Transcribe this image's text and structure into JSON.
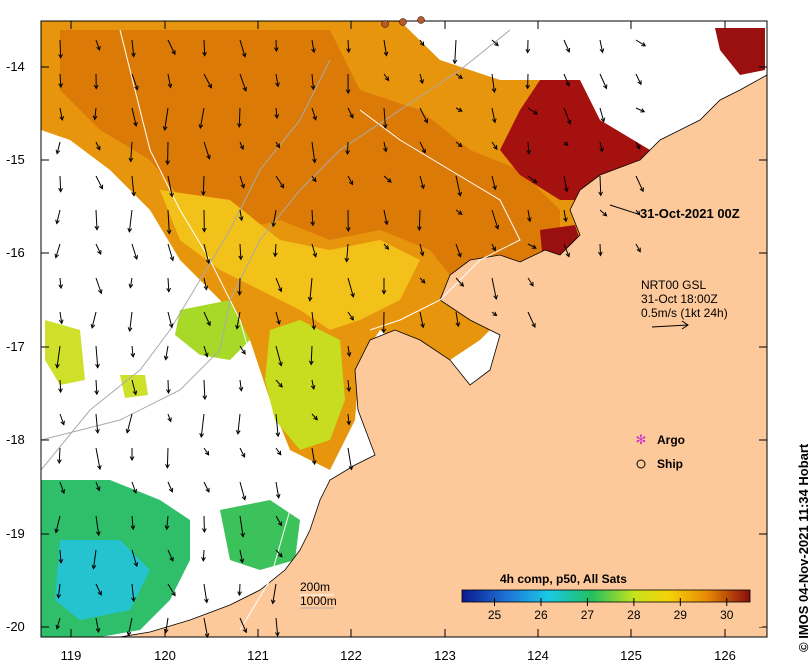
{
  "map": {
    "lon_range": [
      118.7,
      126.7
    ],
    "lat_range": [
      -20.1,
      -13.5
    ],
    "lat_ticks": [
      "-14",
      "-15",
      "-16",
      "-17",
      "-18",
      "-19",
      "-20"
    ],
    "lon_ticks": [
      "119",
      "120",
      "121",
      "122",
      "123",
      "124",
      "125",
      "126"
    ],
    "land_color": "#fdc99a",
    "ocean_nodata_color": "#ffffff"
  },
  "annotations": {
    "time_label": "31-Oct-2021 00Z",
    "current_source": "NRT00 GSL",
    "current_time": "31-Oct 18:00Z",
    "current_scale": "0.5m/s (1kt 24h)"
  },
  "legend": {
    "argo_label": "Argo",
    "ship_label": "Ship",
    "argo_color": "#cc33cc"
  },
  "depth_legend": {
    "d200": "200m",
    "d1000": "1000m"
  },
  "colorbar": {
    "title": "4h comp, p50, All Sats",
    "ticks": [
      "25",
      "26",
      "27",
      "28",
      "29",
      "30"
    ],
    "range": [
      24.3,
      30.5
    ]
  },
  "credit": "© IMOS 04-Nov-2021 11:34 Hobart"
}
